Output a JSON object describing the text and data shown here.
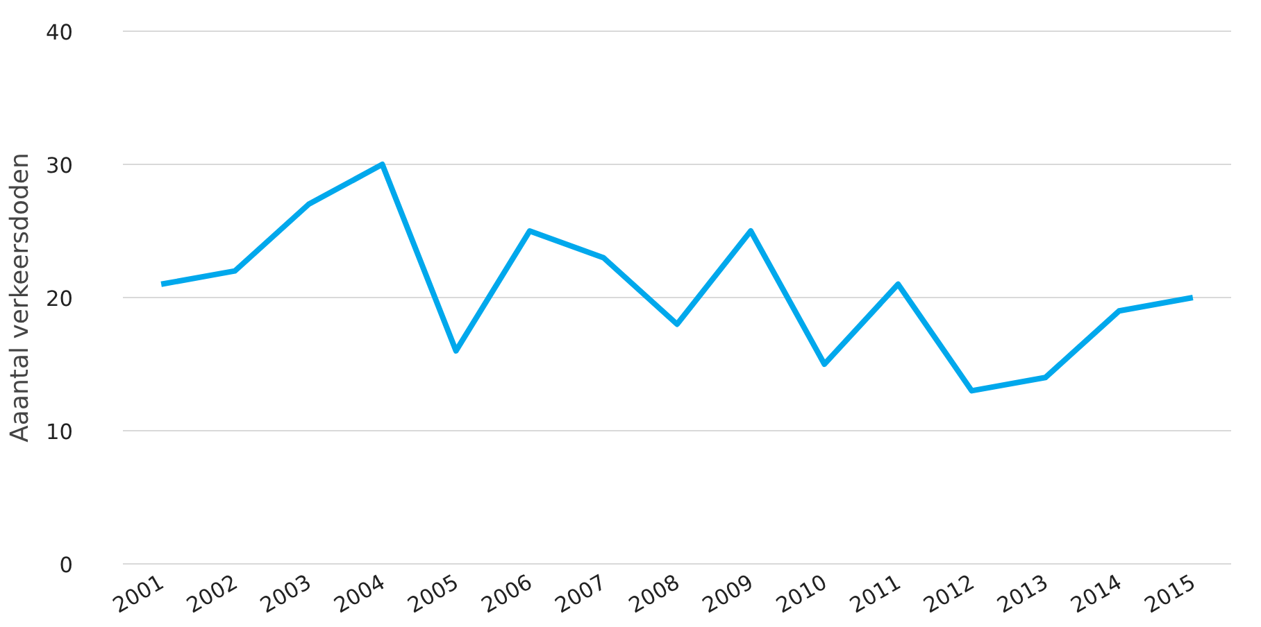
{
  "chart_data": {
    "type": "line",
    "ylabel": "Aaantal verkeersdoden",
    "categories": [
      "2001",
      "2002",
      "2003",
      "2004",
      "2005",
      "2006",
      "2007",
      "2008",
      "2009",
      "2010",
      "2011",
      "2012",
      "2013",
      "2014",
      "2015"
    ],
    "series": [
      {
        "color": "#00a8ec",
        "values": [
          21,
          22,
          27,
          30,
          16,
          25,
          23,
          18,
          25,
          15,
          21,
          13,
          14,
          19,
          20
        ]
      }
    ],
    "ylim": [
      0,
      40
    ],
    "yticks": [
      0,
      10,
      20,
      30,
      40
    ],
    "grid": "y",
    "marker": "none",
    "line_style": "solid"
  }
}
